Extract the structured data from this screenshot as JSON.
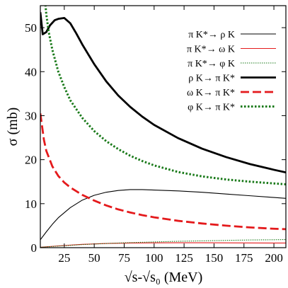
{
  "chart_data": {
    "type": "line",
    "xlabel": "√s-√s₀ (MeV)",
    "ylabel": "σ (mb)",
    "xlim": [
      5,
      210
    ],
    "ylim": [
      0,
      55
    ],
    "x_ticks": [
      "25",
      "50",
      "75",
      "100",
      "125",
      "150",
      "175",
      "200"
    ],
    "y_ticks": [
      "0",
      "10",
      "20",
      "30",
      "40",
      "50"
    ],
    "grid": false,
    "legend_position": "top-right",
    "series": [
      {
        "name": "π K*→ ρ K",
        "color": "#000000",
        "style": "solid-thin",
        "x": [
          5,
          10,
          15,
          20,
          30,
          40,
          50,
          60,
          70,
          80,
          90,
          100,
          120,
          140,
          160,
          180,
          200,
          210
        ],
        "y": [
          1.8,
          3.6,
          5.3,
          6.8,
          9.1,
          10.8,
          11.9,
          12.6,
          13.0,
          13.2,
          13.2,
          13.1,
          12.9,
          12.6,
          12.2,
          11.8,
          11.4,
          11.2
        ]
      },
      {
        "name": "π K*→ ω K",
        "color": "#e41a1c",
        "style": "solid-thin",
        "x": [
          5,
          20,
          40,
          60,
          80,
          100,
          120,
          140,
          160,
          180,
          200,
          210
        ],
        "y": [
          0.1,
          0.4,
          0.75,
          0.95,
          1.05,
          1.1,
          1.12,
          1.12,
          1.1,
          1.08,
          1.05,
          1.05
        ]
      },
      {
        "name": "π K*→ φ K",
        "color": "#1a7a1a",
        "style": "dotted-thin",
        "x": [
          5,
          20,
          40,
          60,
          80,
          100,
          120,
          140,
          160,
          180,
          200,
          210
        ],
        "y": [
          0.1,
          0.35,
          0.7,
          0.95,
          1.15,
          1.3,
          1.45,
          1.55,
          1.65,
          1.75,
          1.8,
          1.85
        ]
      },
      {
        "name": "ρ K→ π K*",
        "color": "#000000",
        "style": "solid-thick",
        "x": [
          5,
          7,
          10,
          13,
          17,
          20,
          25,
          30,
          35,
          40,
          50,
          60,
          70,
          80,
          90,
          100,
          120,
          140,
          160,
          180,
          200,
          210
        ],
        "y": [
          53.5,
          48.5,
          49.0,
          50.5,
          51.7,
          52.0,
          52.2,
          51.0,
          48.7,
          46.2,
          41.7,
          37.8,
          34.6,
          32.0,
          29.8,
          27.9,
          24.9,
          22.5,
          20.6,
          19.0,
          17.7,
          17.1
        ]
      },
      {
        "name": "ω K→ π K*",
        "color": "#e41a1c",
        "style": "dashed-thick",
        "x": [
          5,
          8,
          10,
          15,
          20,
          25,
          30,
          40,
          50,
          60,
          70,
          80,
          90,
          100,
          120,
          140,
          160,
          180,
          200,
          210
        ],
        "y": [
          30.5,
          24.5,
          22.0,
          18.5,
          16.3,
          14.8,
          13.7,
          12.0,
          10.7,
          9.6,
          8.7,
          8.0,
          7.4,
          6.9,
          6.1,
          5.5,
          5.0,
          4.6,
          4.3,
          4.2
        ]
      },
      {
        "name": "φ K→ π K*",
        "color": "#1a7a1a",
        "style": "dotted-thick",
        "x": [
          9,
          10,
          12,
          15,
          20,
          25,
          30,
          40,
          50,
          60,
          70,
          80,
          90,
          100,
          120,
          140,
          160,
          180,
          200,
          210
        ],
        "y": [
          56,
          53.0,
          49.0,
          45.0,
          40.0,
          36.5,
          33.5,
          29.5,
          26.5,
          24.2,
          22.4,
          20.9,
          19.7,
          18.7,
          17.2,
          16.2,
          15.5,
          15.0,
          14.6,
          14.4
        ]
      }
    ]
  }
}
